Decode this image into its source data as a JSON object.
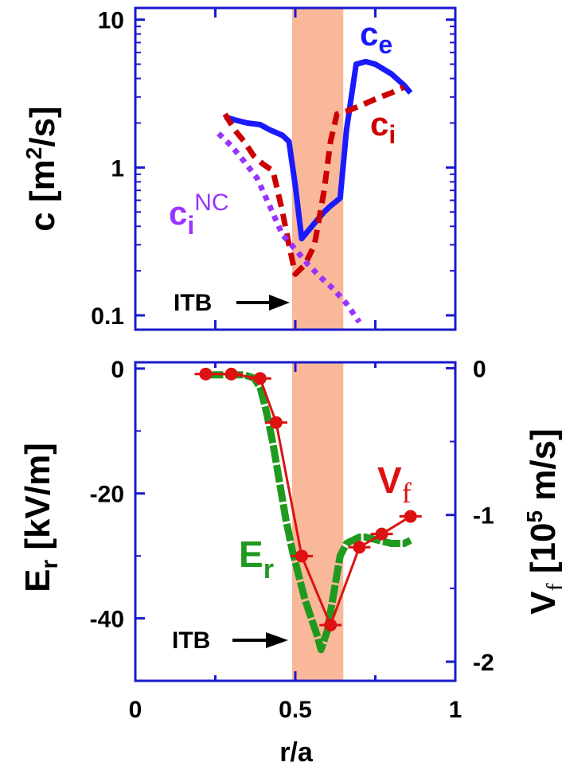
{
  "chart_data": [
    {
      "type": "line",
      "panel": "top",
      "yscale": "log",
      "xlim": [
        0,
        1
      ],
      "ylim": [
        0.08,
        12
      ],
      "x_ticks": [
        0,
        0.25,
        0.5,
        0.75,
        1
      ],
      "y_ticks": [
        0.1,
        1,
        10
      ],
      "y_tick_labels": [
        "0.1",
        "1",
        "10"
      ],
      "ylabel_prefix": "c [m",
      "ylabel_sup": "2",
      "ylabel_suffix": "/s]",
      "series": [
        {
          "name": "c",
          "name_sub": "e",
          "color": "#1a1aff",
          "style": "solid",
          "x": [
            0.28,
            0.31,
            0.35,
            0.39,
            0.42,
            0.46,
            0.48,
            0.5,
            0.52,
            0.56,
            0.59,
            0.61,
            0.64,
            0.66,
            0.69,
            0.72,
            0.75,
            0.8,
            0.84,
            0.86
          ],
          "y": [
            2.2,
            2.1,
            2.0,
            1.95,
            1.8,
            1.65,
            1.5,
            0.75,
            0.33,
            0.42,
            0.5,
            0.55,
            0.62,
            1.8,
            5.0,
            5.2,
            5.0,
            4.3,
            3.6,
            3.2
          ]
        },
        {
          "name": "c",
          "name_sub": "i",
          "color": "#cc0000",
          "style": "dashed",
          "x": [
            0.28,
            0.31,
            0.34,
            0.37,
            0.4,
            0.43,
            0.46,
            0.48,
            0.5,
            0.53,
            0.56,
            0.59,
            0.61,
            0.63,
            0.66,
            0.7,
            0.75,
            0.8,
            0.84
          ],
          "y": [
            2.3,
            1.8,
            1.5,
            1.2,
            1.05,
            0.95,
            0.5,
            0.3,
            0.19,
            0.22,
            0.3,
            0.7,
            1.5,
            2.3,
            2.4,
            2.6,
            2.9,
            3.2,
            3.5
          ]
        },
        {
          "name": "c",
          "name_sub": "i",
          "name_sup": "NC",
          "color": "#9933ff",
          "style": "dotted",
          "x": [
            0.26,
            0.3,
            0.34,
            0.38,
            0.42,
            0.46,
            0.5,
            0.54,
            0.58,
            0.62,
            0.66,
            0.7
          ],
          "y": [
            1.7,
            1.4,
            1.1,
            0.85,
            0.55,
            0.35,
            0.28,
            0.22,
            0.18,
            0.15,
            0.12,
            0.09
          ]
        }
      ],
      "annotations": [
        {
          "text": "ITB",
          "x": 0.49,
          "y": 0.16
        }
      ]
    },
    {
      "type": "line",
      "panel": "bottom",
      "xlim": [
        0,
        1
      ],
      "ylim": [
        -50,
        1
      ],
      "x_ticks": [
        0,
        0.5,
        1
      ],
      "x_tick_labels": [
        "0",
        "0.5",
        "1"
      ],
      "y_ticks": [
        0,
        -20,
        -40
      ],
      "y_tick_labels": [
        "0",
        "-20",
        "-40"
      ],
      "xlabel": "r/a",
      "ylabel_main": "E",
      "ylabel_sub": "r",
      "ylabel_rest": " [kV/m]",
      "y2lim": [
        -2.13,
        0.04
      ],
      "y2_ticks": [
        0,
        -1,
        -2
      ],
      "y2_tick_labels": [
        "0",
        "-1",
        "-2"
      ],
      "y2label_main": "V",
      "y2label_sub": "f",
      "y2label_pre_sup": " [10",
      "y2label_sup": "5",
      "y2label_rest": " m/s]",
      "series": [
        {
          "name": "E",
          "name_sub": "r",
          "color": "#1f9a1f",
          "axis": "left",
          "x": [
            0.22,
            0.26,
            0.3,
            0.34,
            0.37,
            0.39,
            0.41,
            0.43,
            0.45,
            0.47,
            0.49,
            0.51,
            0.53,
            0.55,
            0.57,
            0.58,
            0.6,
            0.62,
            0.64,
            0.66,
            0.68,
            0.7,
            0.72,
            0.76,
            0.8,
            0.84,
            0.86
          ],
          "y": [
            -1,
            -1,
            -1,
            -1,
            -1.5,
            -3,
            -7,
            -12,
            -18,
            -24,
            -29,
            -33,
            -37,
            -40,
            -43,
            -45,
            -42,
            -36,
            -30,
            -28,
            -27.5,
            -27,
            -27,
            -27.5,
            -28,
            -28,
            -27.5
          ]
        },
        {
          "name": "V",
          "name_sub": "f",
          "color": "#dd1111",
          "axis": "right",
          "x": [
            0.22,
            0.3,
            0.39,
            0.44,
            0.52,
            0.61,
            0.7,
            0.77,
            0.86
          ],
          "y": [
            -0.04,
            -0.04,
            -0.07,
            -0.37,
            -1.28,
            -1.75,
            -1.22,
            -1.13,
            -1.01
          ],
          "markers": true
        }
      ],
      "annotations": [
        {
          "text": "ITB",
          "x": 0.49,
          "y": -42
        }
      ]
    }
  ],
  "itb_band": {
    "x_start": 0.49,
    "x_end": 0.65,
    "color": "#f9b89a"
  },
  "colors": {
    "axis": "#1a1acc",
    "ce": "#1a1aff",
    "ci": "#cc0000",
    "cinc": "#9933ff",
    "er": "#1f9a1f",
    "vf": "#dd1111"
  }
}
